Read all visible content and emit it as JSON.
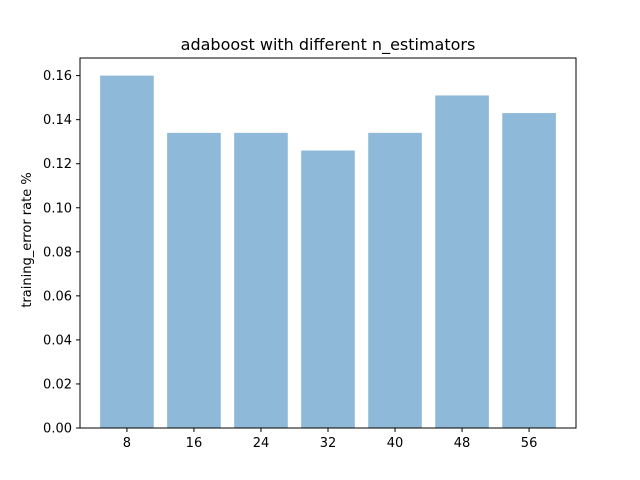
{
  "chart_data": {
    "type": "bar",
    "title": "adaboost with different n_estimators",
    "xlabel": "",
    "ylabel": "training_error rate %",
    "categories": [
      "8",
      "16",
      "24",
      "32",
      "40",
      "48",
      "56"
    ],
    "values": [
      0.16,
      0.134,
      0.134,
      0.126,
      0.134,
      0.151,
      0.143
    ],
    "ylim": [
      0,
      0.168
    ],
    "yticks": [
      "0.00",
      "0.02",
      "0.04",
      "0.06",
      "0.08",
      "0.10",
      "0.12",
      "0.14",
      "0.16"
    ],
    "bar_color": "#8fb9d9",
    "grid": false,
    "legend": "none"
  }
}
